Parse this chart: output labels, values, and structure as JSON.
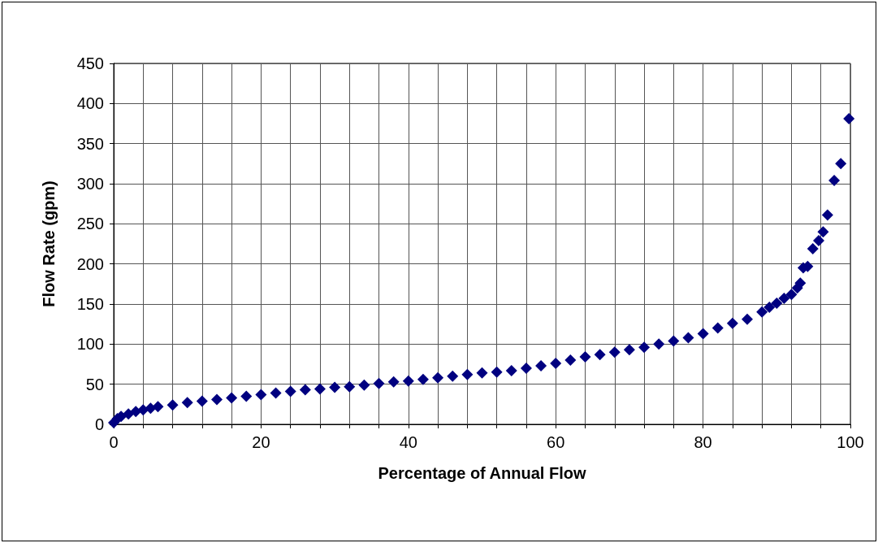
{
  "chart_data": {
    "type": "scatter",
    "xlabel": "Percentage of Annual Flow",
    "ylabel": "Flow Rate (gpm)",
    "x": [
      0,
      0.5,
      1,
      2,
      3,
      4,
      5,
      6,
      8,
      10,
      12,
      14,
      16,
      18,
      20,
      22,
      24,
      26,
      28,
      30,
      32,
      34,
      36,
      38,
      40,
      42,
      44,
      46,
      48,
      50,
      52,
      54,
      56,
      58,
      60,
      62,
      64,
      66,
      68,
      70,
      72,
      74,
      76,
      78,
      80,
      82,
      84,
      86,
      88,
      89,
      90,
      91,
      92,
      92.8,
      93.2,
      93.6,
      94.2,
      94.9,
      95.7,
      96.3,
      96.9,
      97.8,
      98.7,
      99.8
    ],
    "series": [
      {
        "color": "#000080",
        "values": [
          2,
          7,
          10,
          13,
          16,
          18,
          20,
          22,
          24,
          27,
          29,
          31,
          33,
          35,
          37,
          39,
          41,
          43,
          44,
          46,
          47,
          49,
          51,
          53,
          54,
          56,
          58,
          60,
          62,
          64,
          65,
          67,
          70,
          73,
          76,
          80,
          84,
          87,
          90,
          93,
          96,
          100,
          104,
          108,
          113,
          120,
          126,
          131,
          140,
          146,
          151,
          157,
          162,
          170,
          176,
          195,
          197,
          219,
          229,
          240,
          261,
          304,
          325,
          381
        ]
      }
    ],
    "xlim": [
      0,
      100
    ],
    "ylim": [
      0,
      450
    ],
    "xticks": [
      0,
      {
        "value": 4,
        "label": null
      },
      {
        "value": 8,
        "label": null
      },
      {
        "value": 12,
        "label": null
      },
      {
        "value": 16,
        "label": null
      },
      20,
      {
        "value": 24,
        "label": null
      },
      {
        "value": 28,
        "label": null
      },
      {
        "value": 32,
        "label": null
      },
      {
        "value": 36,
        "label": null
      },
      40,
      {
        "value": 44,
        "label": null
      },
      {
        "value": 48,
        "label": null
      },
      {
        "value": 52,
        "label": null
      },
      {
        "value": 56,
        "label": null
      },
      60,
      {
        "value": 64,
        "label": null
      },
      {
        "value": 68,
        "label": null
      },
      {
        "value": 72,
        "label": null
      },
      {
        "value": 76,
        "label": null
      },
      80,
      {
        "value": 84,
        "label": null
      },
      {
        "value": 88,
        "label": null
      },
      {
        "value": 92,
        "label": null
      },
      {
        "value": 96,
        "label": null
      },
      100
    ],
    "yticks": [
      0,
      50,
      100,
      150,
      200,
      250,
      300,
      350,
      400,
      450
    ],
    "grid": true,
    "marker": "diamond"
  }
}
